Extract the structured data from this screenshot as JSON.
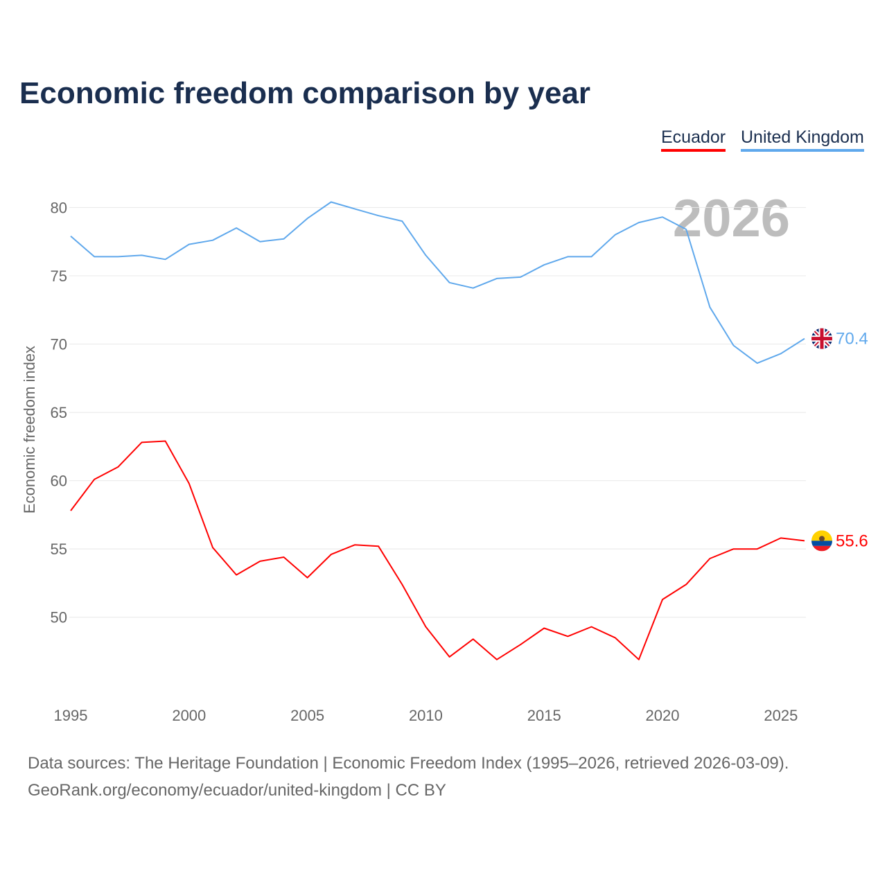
{
  "chart_data": {
    "type": "line",
    "title": "Economic freedom comparison by year",
    "ylabel": "Economic freedom index",
    "xlabel": "",
    "ylim": [
      44,
      82
    ],
    "xlim": [
      1995,
      2026
    ],
    "yticks": [
      50,
      55,
      60,
      65,
      70,
      75,
      80
    ],
    "xticks": [
      1995,
      2000,
      2005,
      2010,
      2015,
      2020,
      2025
    ],
    "year_watermark": "2026",
    "grid": true,
    "legend_position": "top-right",
    "x": [
      1995,
      1996,
      1997,
      1998,
      1999,
      2000,
      2001,
      2002,
      2003,
      2004,
      2005,
      2006,
      2007,
      2008,
      2009,
      2010,
      2011,
      2012,
      2013,
      2014,
      2015,
      2016,
      2017,
      2018,
      2019,
      2020,
      2021,
      2022,
      2023,
      2024,
      2025,
      2026
    ],
    "series": [
      {
        "name": "Ecuador",
        "color": "#ff0000",
        "end_label": "55.6",
        "values": [
          57.8,
          60.1,
          61.0,
          62.8,
          62.9,
          59.8,
          55.1,
          53.1,
          54.1,
          54.4,
          52.9,
          54.6,
          55.3,
          55.2,
          52.4,
          49.3,
          47.1,
          48.4,
          46.9,
          48.0,
          49.2,
          48.6,
          49.3,
          48.5,
          46.9,
          51.3,
          52.4,
          54.3,
          55.0,
          55.0,
          55.8,
          55.6
        ]
      },
      {
        "name": "United Kingdom",
        "color": "#5fa8ec",
        "end_label": "70.4",
        "values": [
          77.9,
          76.4,
          76.4,
          76.5,
          76.2,
          77.3,
          77.6,
          78.5,
          77.5,
          77.7,
          79.2,
          80.4,
          79.9,
          79.4,
          79.0,
          76.5,
          74.5,
          74.1,
          74.8,
          74.9,
          75.8,
          76.4,
          76.4,
          78.0,
          78.9,
          79.3,
          78.4,
          72.7,
          69.9,
          68.6,
          69.3,
          70.4
        ]
      }
    ]
  },
  "footer": {
    "line1": "Data sources: The Heritage Foundation | Economic Freedom Index (1995–2026, retrieved 2026-03-09).",
    "line2": "GeoRank.org/economy/ecuador/united-kingdom | CC BY"
  }
}
